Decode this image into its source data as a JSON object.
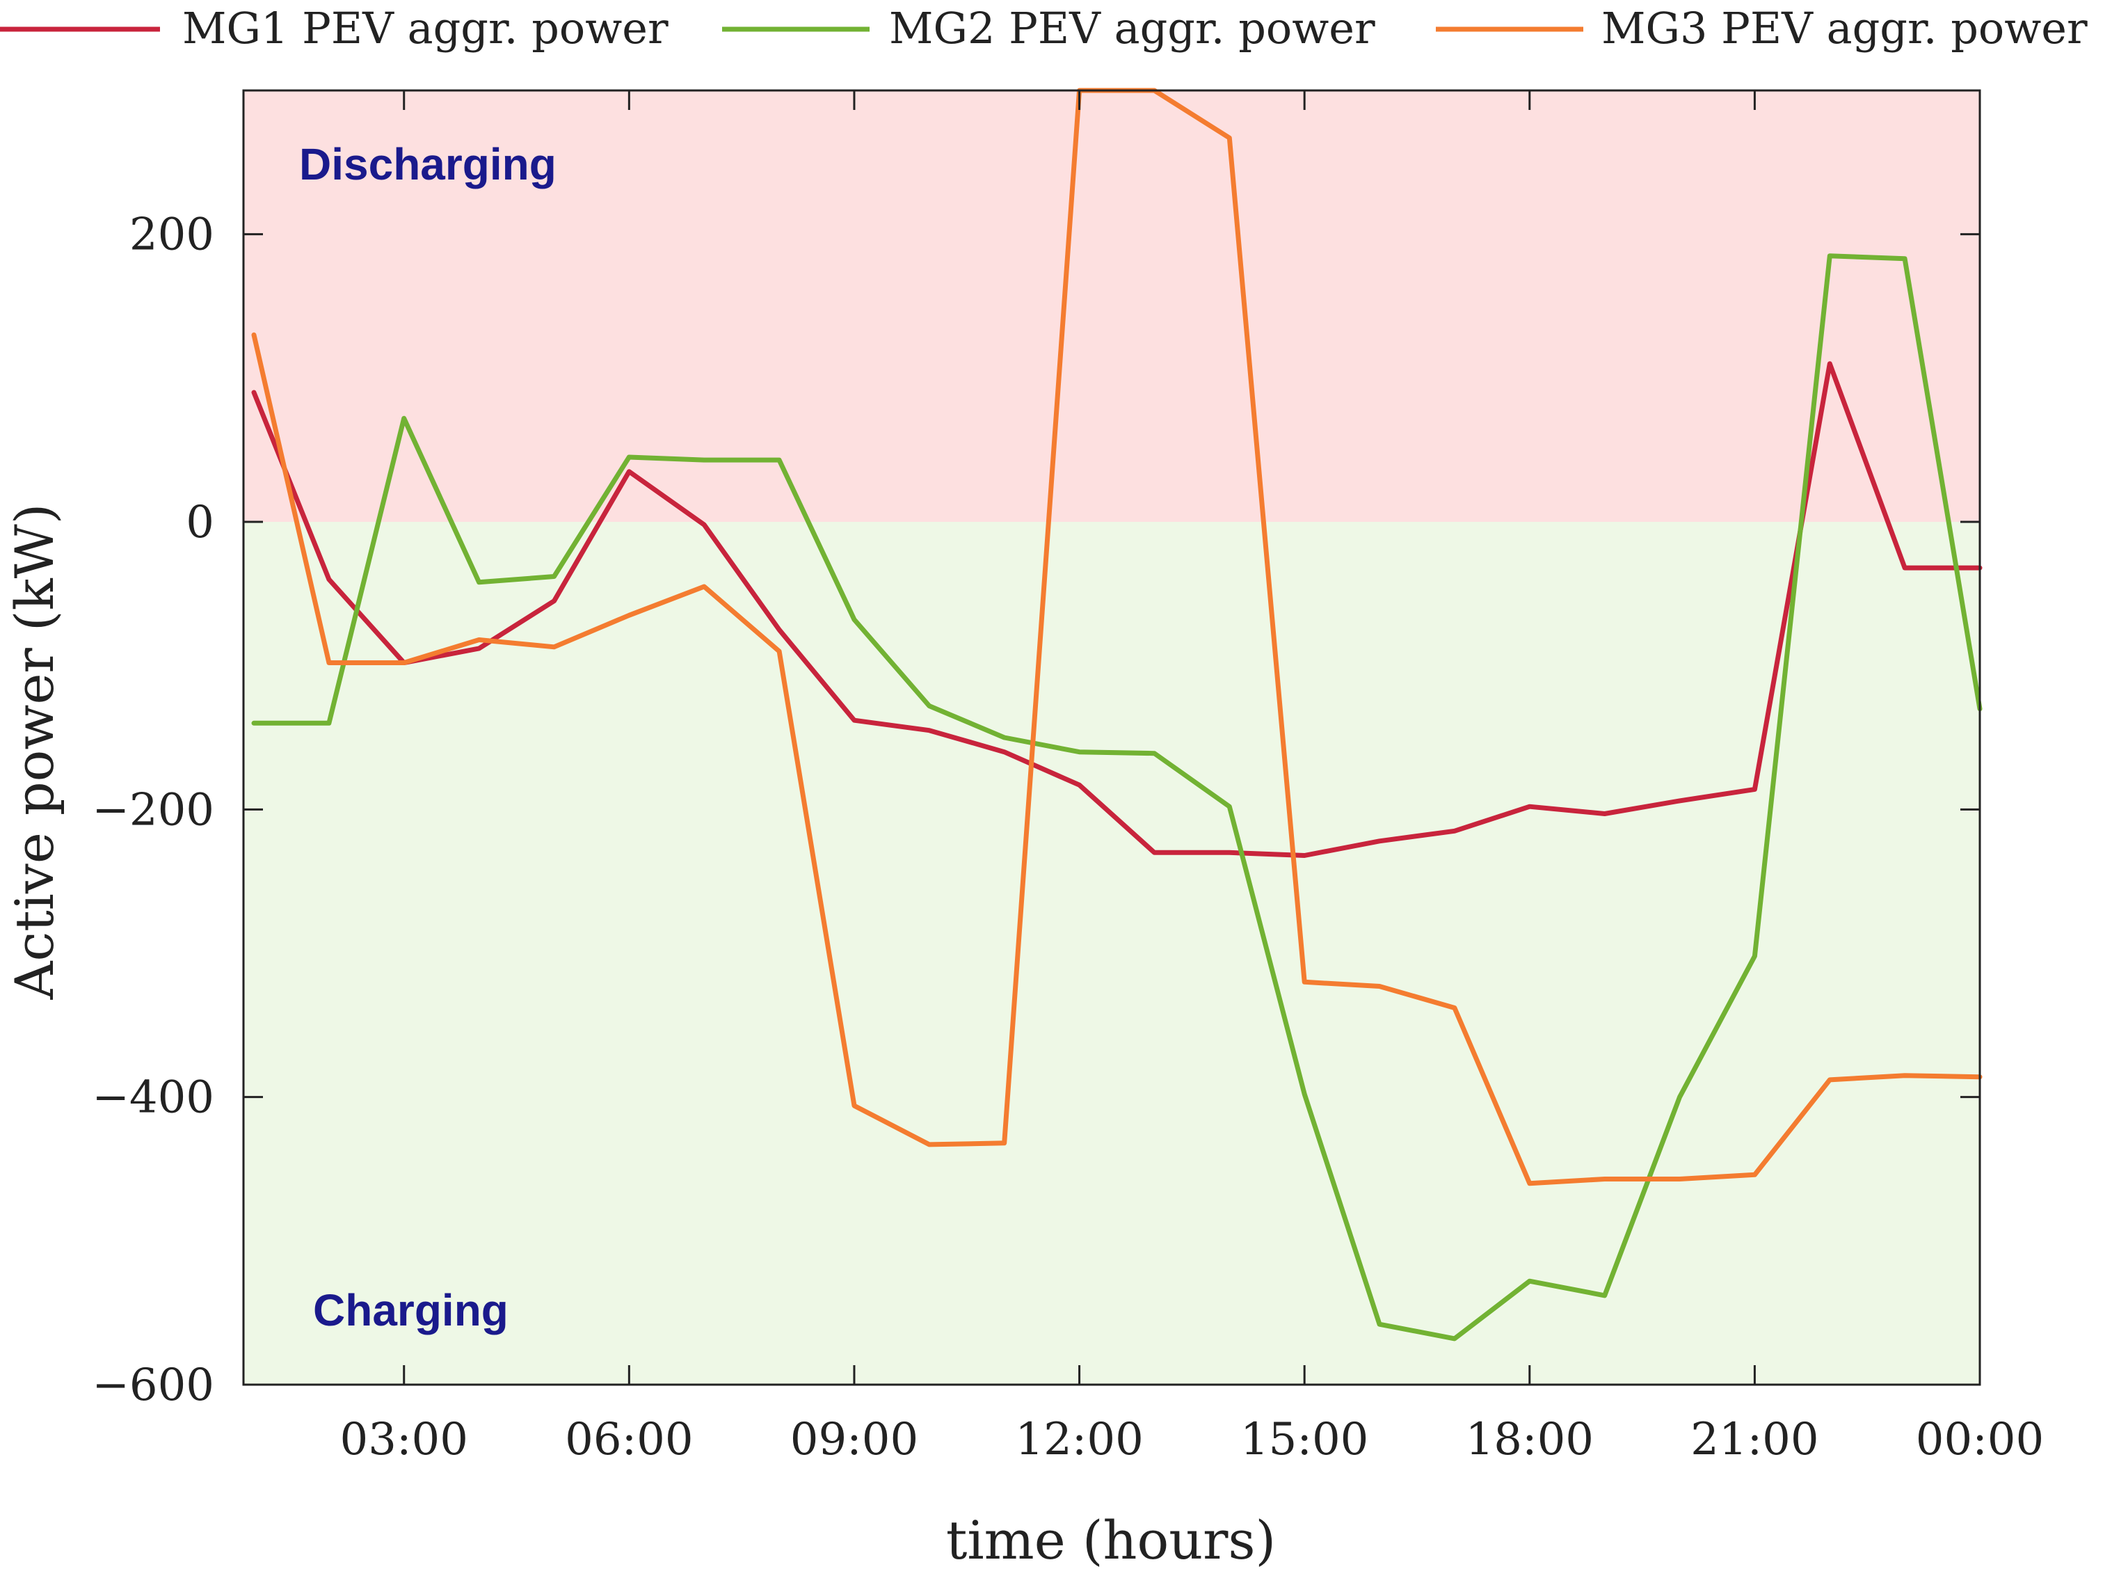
{
  "chart_data": {
    "type": "line",
    "xlabel": "time (hours)",
    "ylabel": "Active power (kW)",
    "xlim": [
      1,
      24
    ],
    "ylim": [
      -600,
      300
    ],
    "x_ticks": [
      {
        "value": 3,
        "label": "03:00"
      },
      {
        "value": 6,
        "label": "06:00"
      },
      {
        "value": 9,
        "label": "09:00"
      },
      {
        "value": 12,
        "label": "12:00"
      },
      {
        "value": 15,
        "label": "15:00"
      },
      {
        "value": 18,
        "label": "18:00"
      },
      {
        "value": 21,
        "label": "21:00"
      },
      {
        "value": 24,
        "label": "00:00"
      }
    ],
    "y_ticks": [
      {
        "value": 200,
        "label": "200"
      },
      {
        "value": 0,
        "label": "0"
      },
      {
        "value": -200,
        "label": "−200"
      },
      {
        "value": -400,
        "label": "−400"
      },
      {
        "value": -600,
        "label": "−600"
      }
    ],
    "regions": [
      {
        "label": "Discharging",
        "from": 0,
        "to": 300,
        "color": "#fde0e0",
        "text_color": "#1a1a8c"
      },
      {
        "label": "Charging",
        "from": -600,
        "to": 0,
        "color": "#eef8e6",
        "text_color": "#1a1a8c"
      }
    ],
    "legend_position": "top",
    "x": [
      1,
      2,
      3,
      4,
      5,
      6,
      7,
      8,
      9,
      10,
      11,
      12,
      13,
      14,
      15,
      16,
      17,
      18,
      19,
      20,
      21,
      22,
      23,
      24
    ],
    "series": [
      {
        "name": "MG1 PEV aggr. power",
        "color": "#c8243c",
        "values": [
          90,
          -40,
          -98,
          -88,
          -55,
          35,
          -2,
          -75,
          -138,
          -145,
          -160,
          -183,
          -230,
          -230,
          -232,
          -222,
          -215,
          -198,
          -203,
          -194,
          -186,
          110,
          -32,
          -32
        ]
      },
      {
        "name": "MG2 PEV aggr. power",
        "color": "#72b233",
        "values": [
          -140,
          -140,
          72,
          -42,
          -38,
          45,
          43,
          43,
          -68,
          -128,
          -150,
          -160,
          -161,
          -198,
          -398,
          -558,
          -568,
          -528,
          -538,
          -400,
          -302,
          185,
          183,
          -130
        ]
      },
      {
        "name": "MG3 PEV aggr. power",
        "color": "#f47c30",
        "values": [
          130,
          -98,
          -98,
          -82,
          -87,
          -65,
          -45,
          -90,
          -406,
          -433,
          -432,
          300,
          300,
          267,
          -320,
          -323,
          -338,
          -460,
          -457,
          -457,
          -454,
          -388,
          -385,
          -386
        ]
      }
    ]
  }
}
